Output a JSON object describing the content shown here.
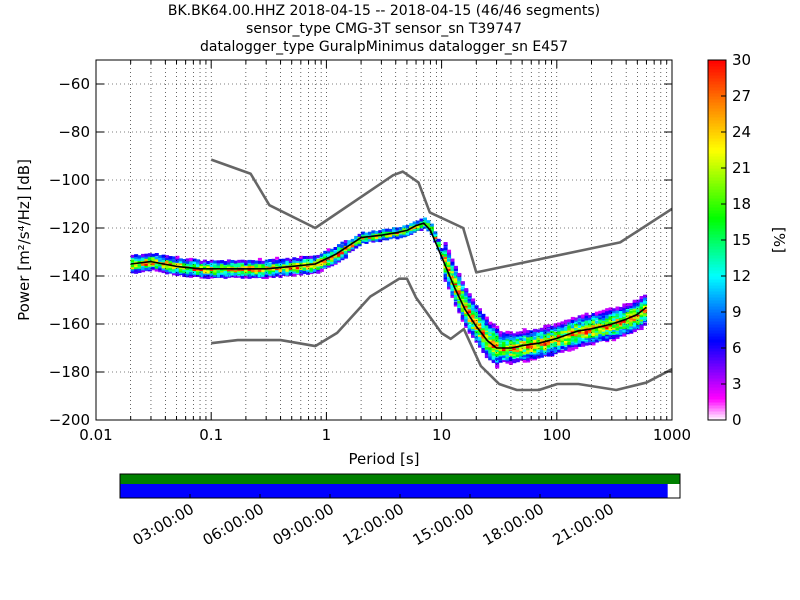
{
  "chart_data": {
    "type": "heatmap",
    "title_lines": [
      "BK.BK64.00.HHZ   2018-04-15 -- 2018-04-15  (46/46 segments)",
      "sensor_type CMG-3T sensor_sn T39747",
      "datalogger_type GuralpMinimus datalogger_sn E457"
    ],
    "xlabel": "Period [s]",
    "ylabel": "Power [m²/s⁴/Hz] [dB]",
    "xscale": "log",
    "xlim": [
      0.01,
      1000
    ],
    "ylim": [
      -200,
      -50
    ],
    "x_ticks": [
      {
        "value": 0.01,
        "label": "0.01"
      },
      {
        "value": 0.1,
        "label": "0.1"
      },
      {
        "value": 1,
        "label": "1"
      },
      {
        "value": 10,
        "label": "10"
      },
      {
        "value": 100,
        "label": "100"
      },
      {
        "value": 1000,
        "label": "1000"
      }
    ],
    "y_ticks": [
      {
        "value": -60,
        "label": "−60"
      },
      {
        "value": -80,
        "label": "−80"
      },
      {
        "value": -100,
        "label": "−100"
      },
      {
        "value": -120,
        "label": "−120"
      },
      {
        "value": -140,
        "label": "−140"
      },
      {
        "value": -160,
        "label": "−160"
      },
      {
        "value": -180,
        "label": "−180"
      },
      {
        "value": -200,
        "label": "−200"
      }
    ],
    "grid": true,
    "colorbar": {
      "label": "[%]",
      "range": [
        0,
        30
      ],
      "ticks": [
        "0",
        "3",
        "6",
        "9",
        "12",
        "15",
        "18",
        "21",
        "24",
        "27",
        "30"
      ],
      "colormap": "pqlx"
    },
    "series": [
      {
        "role": "high-noise-model",
        "color": "#666666",
        "x": [
          0.1,
          0.22,
          0.32,
          0.8,
          3.8,
          4.6,
          6.3,
          7.9,
          15.4,
          20,
          354.8,
          1000
        ],
        "y": [
          -91.5,
          -97.4,
          -110.5,
          -120,
          -98,
          -96.5,
          -101,
          -113.5,
          -120,
          -138.5,
          -126,
          -112
        ]
      },
      {
        "role": "low-noise-model",
        "color": "#666666",
        "x": [
          0.1,
          0.17,
          0.4,
          0.8,
          1.24,
          2.4,
          4.3,
          5,
          6,
          10,
          12,
          15.6,
          21.9,
          31.6,
          45,
          70,
          101,
          154,
          328,
          600,
          1000
        ],
        "y": [
          -168,
          -166.7,
          -166.7,
          -169.2,
          -163.7,
          -148.6,
          -141.1,
          -141.1,
          -149,
          -163.8,
          -166.2,
          -162.1,
          -177.5,
          -185,
          -187.5,
          -187.5,
          -185,
          -185,
          -187.5,
          -184.4,
          -178.8
        ]
      },
      {
        "role": "mode",
        "color": "#000000",
        "x": [
          0.02,
          0.03,
          0.05,
          0.08,
          0.12,
          0.2,
          0.3,
          0.5,
          0.8,
          1.2,
          2,
          3,
          4,
          5,
          6,
          7,
          8,
          10,
          13,
          16,
          20,
          25,
          30,
          40,
          50,
          70,
          100,
          150,
          200,
          300,
          400,
          500,
          600
        ],
        "y": [
          -135,
          -134,
          -136,
          -137,
          -137,
          -137,
          -137,
          -136,
          -135,
          -131,
          -124,
          -123,
          -122,
          -121,
          -119,
          -118,
          -121,
          -132,
          -145,
          -154,
          -161,
          -167,
          -170,
          -170,
          -169,
          -168,
          -166,
          -163,
          -162,
          -160,
          -158,
          -156,
          -153
        ]
      }
    ],
    "time_axis": {
      "tick_labels": [
        "03:00:00",
        "06:00:00",
        "09:00:00",
        "12:00:00",
        "15:00:00",
        "18:00:00",
        "21:00:00"
      ],
      "data_coverage_fraction": 0.978,
      "gap_coverage_fraction": 1.0,
      "data_color": "#0000ff",
      "gap_color": "#008000"
    }
  }
}
